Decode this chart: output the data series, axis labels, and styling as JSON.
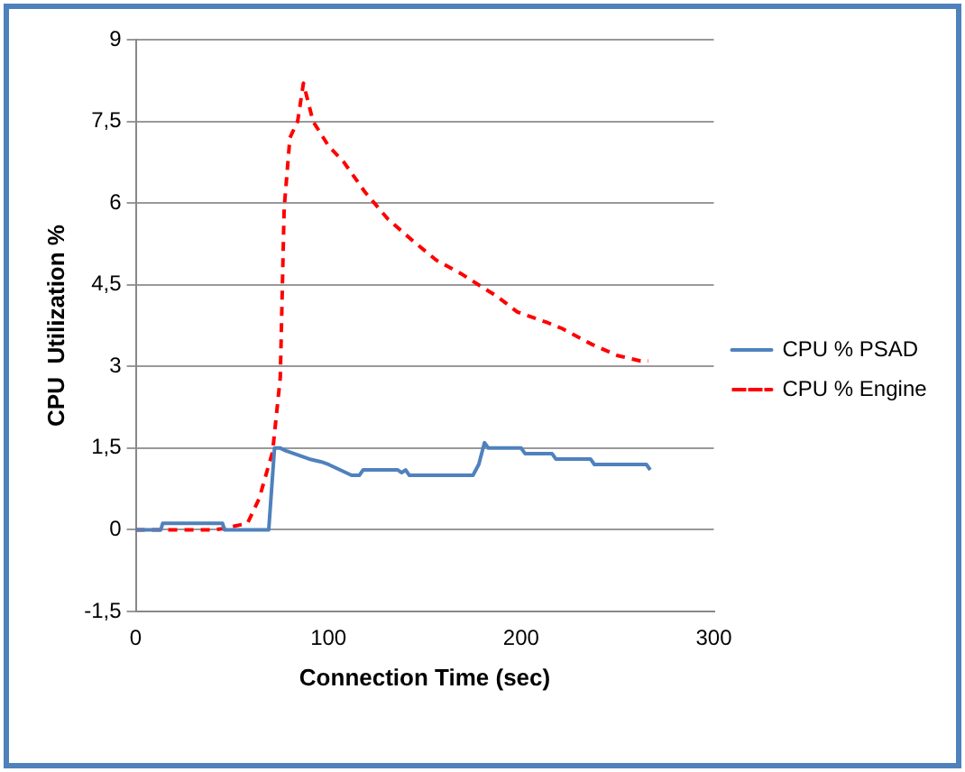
{
  "chart_data": {
    "type": "line",
    "xlabel": "Connection Time (sec)",
    "ylabel": "CPU  Utilization %",
    "xlim": [
      0,
      300
    ],
    "xticks": [
      0,
      100,
      200,
      300
    ],
    "ylim": [
      -1.5,
      9
    ],
    "yticks": [
      {
        "value": -1.5,
        "label": "-1,5"
      },
      0,
      {
        "value": 1.5,
        "label": "1,5"
      },
      3,
      {
        "value": 4.5,
        "label": "4,5"
      },
      6,
      {
        "value": 7.5,
        "label": "7,5"
      },
      9
    ],
    "grid": "y",
    "legend": "right",
    "marker": "none",
    "series": [
      {
        "name": "CPU % PSAD",
        "color": "#4f81bd",
        "line_style": "solid",
        "x": [
          0,
          13,
          14,
          45,
          46,
          69,
          72,
          75,
          78,
          82,
          86,
          90,
          96,
          100,
          106,
          112,
          116,
          118,
          136,
          138,
          140,
          142,
          175,
          178,
          181,
          183,
          200,
          202,
          216,
          218,
          236,
          238,
          265,
          267
        ],
        "values": [
          0,
          0,
          0.12,
          0.12,
          0,
          0,
          1.5,
          1.5,
          1.45,
          1.4,
          1.35,
          1.3,
          1.25,
          1.2,
          1.1,
          1.0,
          1.0,
          1.1,
          1.1,
          1.05,
          1.1,
          1.0,
          1.0,
          1.2,
          1.6,
          1.5,
          1.5,
          1.4,
          1.4,
          1.3,
          1.3,
          1.2,
          1.2,
          1.1
        ]
      },
      {
        "name": "CPU % Engine",
        "color": "#ff0000",
        "line_style": "dashed",
        "x": [
          0,
          40,
          45,
          58,
          64,
          71,
          75,
          77,
          80,
          84,
          87,
          92,
          100,
          108,
          119,
          131,
          144,
          156,
          169,
          180,
          187,
          198,
          214,
          221,
          237,
          250,
          262,
          266
        ],
        "values": [
          0,
          0,
          0.02,
          0.12,
          0.57,
          1.43,
          2.8,
          5.9,
          7.2,
          7.5,
          8.2,
          7.5,
          7.05,
          6.75,
          6.2,
          5.7,
          5.3,
          4.95,
          4.7,
          4.45,
          4.3,
          4.0,
          3.8,
          3.7,
          3.4,
          3.2,
          3.1,
          3.1
        ]
      }
    ]
  }
}
